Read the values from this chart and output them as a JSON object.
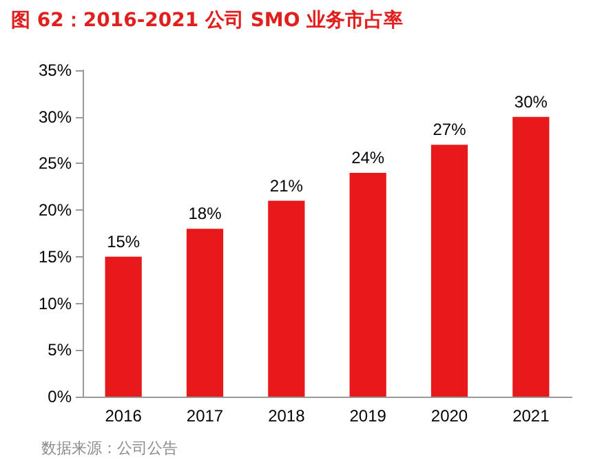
{
  "chart_data": {
    "type": "bar",
    "title": "图 62：2016-2021 公司 SMO 业务市占率",
    "categories": [
      "2016",
      "2017",
      "2018",
      "2019",
      "2020",
      "2021"
    ],
    "values": [
      15,
      18,
      21,
      24,
      27,
      30
    ],
    "value_labels": [
      "15%",
      "18%",
      "21%",
      "24%",
      "27%",
      "30%"
    ],
    "color": "#e8191a",
    "ylim": [
      0,
      35
    ],
    "yticks": [
      {
        "value": 0,
        "label": "0%"
      },
      {
        "value": 5,
        "label": "5%"
      },
      {
        "value": 10,
        "label": "10%"
      },
      {
        "value": 15,
        "label": "15%"
      },
      {
        "value": 20,
        "label": "20%"
      },
      {
        "value": 25,
        "label": "25%"
      },
      {
        "value": 30,
        "label": "30%"
      },
      {
        "value": 35,
        "label": "35%"
      }
    ],
    "grid": false,
    "annotations": [
      "数据来源：公司公告"
    ]
  }
}
